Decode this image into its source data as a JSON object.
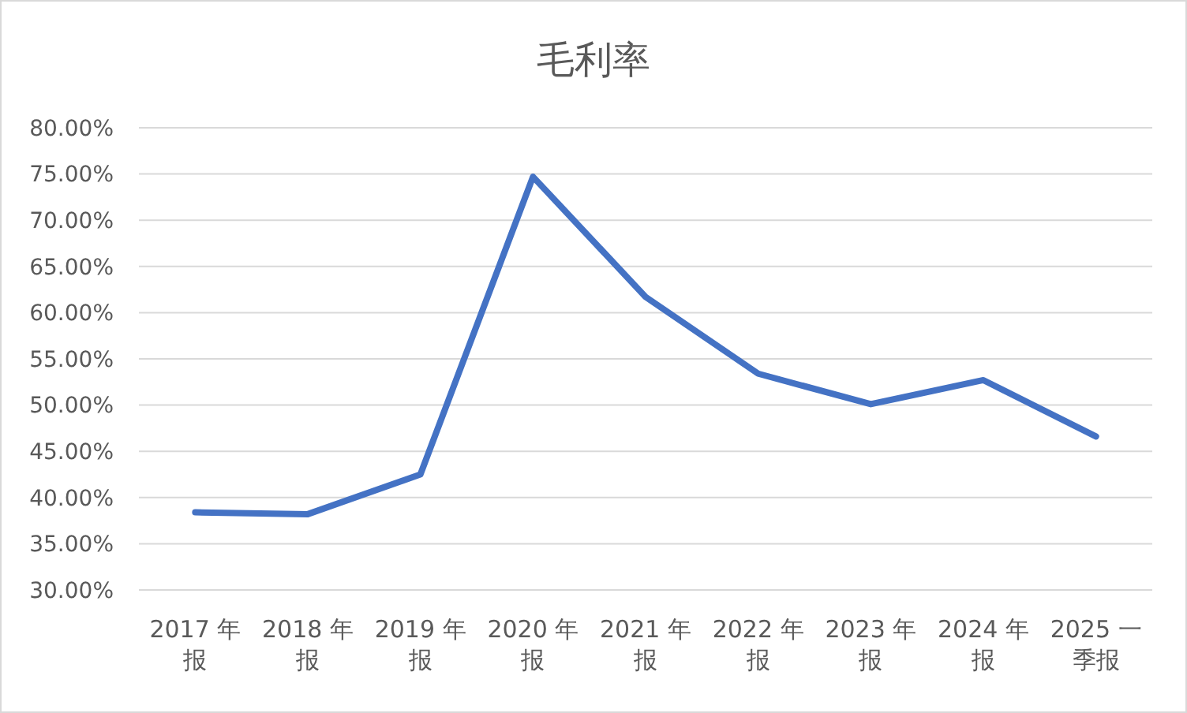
{
  "chart_data": {
    "type": "line",
    "title": "毛利率",
    "categories": [
      "2017 年报",
      "2018 年报",
      "2019 年报",
      "2020 年报",
      "2021 年报",
      "2022 年报",
      "2023 年报",
      "2024 年报",
      "2025 一季报"
    ],
    "series": [
      {
        "color": "#4472c4",
        "values": [
          38.4,
          38.2,
          42.5,
          74.7,
          61.7,
          53.4,
          50.1,
          52.7,
          46.6
        ]
      }
    ],
    "ylim": [
      30,
      80
    ],
    "yticks": [
      {
        "value": 30,
        "label": "30.00%"
      },
      {
        "value": 35,
        "label": "35.00%"
      },
      {
        "value": 40,
        "label": "40.00%"
      },
      {
        "value": 45,
        "label": "45.00%"
      },
      {
        "value": 50,
        "label": "50.00%"
      },
      {
        "value": 55,
        "label": "55.00%"
      },
      {
        "value": 60,
        "label": "60.00%"
      },
      {
        "value": 65,
        "label": "65.00%"
      },
      {
        "value": 70,
        "label": "70.00%"
      },
      {
        "value": 75,
        "label": "75.00%"
      },
      {
        "value": 80,
        "label": "80.00%"
      }
    ],
    "grid": "y",
    "marker": "none",
    "line_style": "solid"
  }
}
